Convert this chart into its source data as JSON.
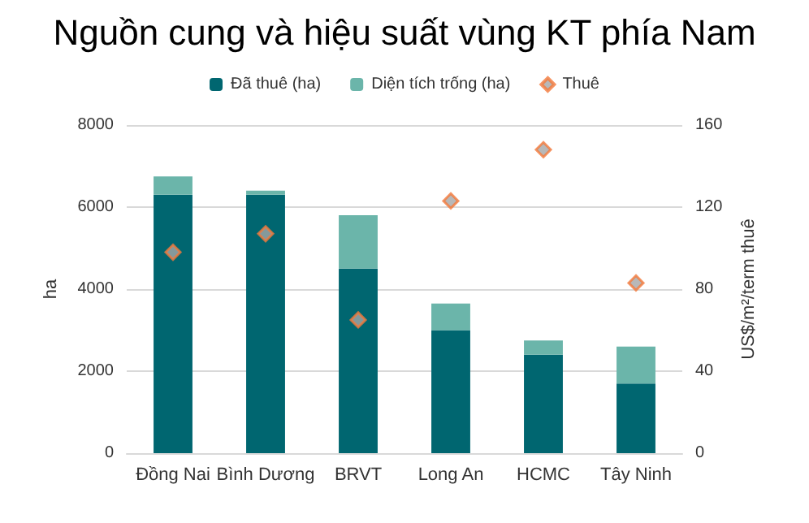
{
  "chart_data": {
    "type": "bar",
    "title": "Nguồn cung và hiệu suất vùng KT phía Nam",
    "categories": [
      "Đồng Nai",
      "Bình Dương",
      "BRVT",
      "Long An",
      "HCMC",
      "Tây Ninh"
    ],
    "series": [
      {
        "name": "Đã thuê (ha)",
        "color": "#006670",
        "values": [
          6300,
          6300,
          4500,
          3000,
          2400,
          1700
        ]
      },
      {
        "name": "Diện tích trống (ha)",
        "color": "#6bb5aa",
        "values": [
          450,
          100,
          1300,
          650,
          350,
          900
        ]
      },
      {
        "name": "Thuê",
        "type": "scatter",
        "axis": "y2",
        "color": "#f4793b",
        "values": [
          98,
          107,
          65,
          123,
          148,
          83
        ]
      }
    ],
    "stacked": true,
    "ylabel": "ha",
    "y2label": "US$/m²/term thuê",
    "ylim": [
      0,
      8000
    ],
    "yticks": [
      0,
      2000,
      4000,
      6000,
      8000
    ],
    "y2lim": [
      0,
      160
    ],
    "y2ticks": [
      0,
      40,
      80,
      120,
      160
    ],
    "grid": "y",
    "legend": "top",
    "marker": "diamond"
  }
}
